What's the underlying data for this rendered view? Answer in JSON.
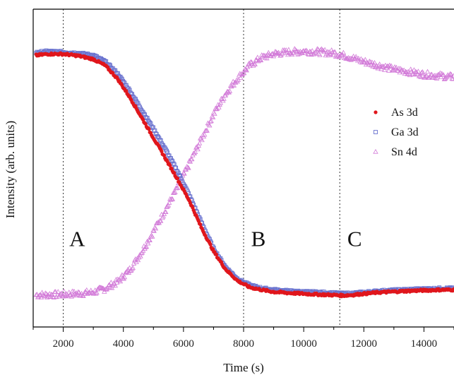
{
  "chart_data": {
    "type": "scatter",
    "title": "",
    "xlabel": "Time (s)",
    "ylabel": "Intensity (arb. units)",
    "xlim": [
      1000,
      15000
    ],
    "ylim": [
      0,
      1
    ],
    "x_ticks": [
      2000,
      4000,
      6000,
      8000,
      10000,
      12000,
      14000
    ],
    "y_ticks_shown": false,
    "grid": false,
    "legend_position": "right",
    "series": [
      {
        "name": "As 3d",
        "marker": "filled-circle",
        "color": "#e0161c",
        "x": [
          1100,
          1500,
          2000,
          2500,
          3000,
          3400,
          3800,
          4200,
          4600,
          5000,
          5400,
          5800,
          6200,
          6600,
          7000,
          7400,
          7800,
          8200,
          8600,
          9000,
          9500,
          10000,
          10500,
          11000,
          11300,
          11600,
          12000,
          12500,
          13000,
          13500,
          14000,
          14500,
          15000
        ],
        "y": [
          0.95,
          0.955,
          0.955,
          0.948,
          0.935,
          0.91,
          0.86,
          0.79,
          0.71,
          0.63,
          0.55,
          0.47,
          0.385,
          0.28,
          0.19,
          0.12,
          0.075,
          0.05,
          0.04,
          0.032,
          0.028,
          0.025,
          0.022,
          0.02,
          0.018,
          0.02,
          0.025,
          0.03,
          0.033,
          0.036,
          0.038,
          0.04,
          0.04
        ]
      },
      {
        "name": "Ga 3d",
        "marker": "open-square",
        "color": "#6a73cf",
        "x": [
          1100,
          1500,
          2000,
          2500,
          3000,
          3400,
          3800,
          4200,
          4600,
          5000,
          5400,
          5800,
          6200,
          6600,
          7000,
          7400,
          7800,
          8200,
          8600,
          9000,
          9500,
          10000,
          10500,
          11000,
          11300,
          11600,
          12000,
          12500,
          13000,
          13500,
          14000,
          14500,
          15000
        ],
        "y": [
          0.96,
          0.965,
          0.962,
          0.958,
          0.95,
          0.925,
          0.88,
          0.815,
          0.74,
          0.665,
          0.585,
          0.5,
          0.405,
          0.3,
          0.2,
          0.128,
          0.082,
          0.058,
          0.046,
          0.04,
          0.035,
          0.032,
          0.03,
          0.027,
          0.025,
          0.026,
          0.03,
          0.035,
          0.038,
          0.041,
          0.043,
          0.045,
          0.046
        ]
      },
      {
        "name": "Sn 4d",
        "marker": "open-triangle",
        "color": "#d27ad8",
        "x": [
          1100,
          1500,
          2000,
          2500,
          3000,
          3400,
          3800,
          4200,
          4600,
          5000,
          5400,
          5800,
          6200,
          6600,
          7000,
          7400,
          7800,
          8200,
          8600,
          9000,
          9500,
          10000,
          10500,
          11000,
          11300,
          11600,
          12000,
          12500,
          13000,
          13500,
          14000,
          14500,
          15000
        ],
        "y": [
          0.02,
          0.02,
          0.022,
          0.025,
          0.03,
          0.045,
          0.07,
          0.115,
          0.185,
          0.265,
          0.35,
          0.435,
          0.53,
          0.625,
          0.72,
          0.8,
          0.86,
          0.91,
          0.94,
          0.955,
          0.962,
          0.965,
          0.963,
          0.958,
          0.95,
          0.94,
          0.925,
          0.91,
          0.895,
          0.885,
          0.875,
          0.87,
          0.865
        ]
      }
    ],
    "vertical_lines": [
      {
        "x": 2000,
        "style": "dotted"
      },
      {
        "x": 8000,
        "style": "dotted"
      },
      {
        "x": 11200,
        "style": "dotted"
      }
    ],
    "region_labels": [
      {
        "text": "A",
        "x": 2200,
        "y": 0.21
      },
      {
        "text": "B",
        "x": 8250,
        "y": 0.21
      },
      {
        "text": "C",
        "x": 11450,
        "y": 0.21
      }
    ]
  }
}
